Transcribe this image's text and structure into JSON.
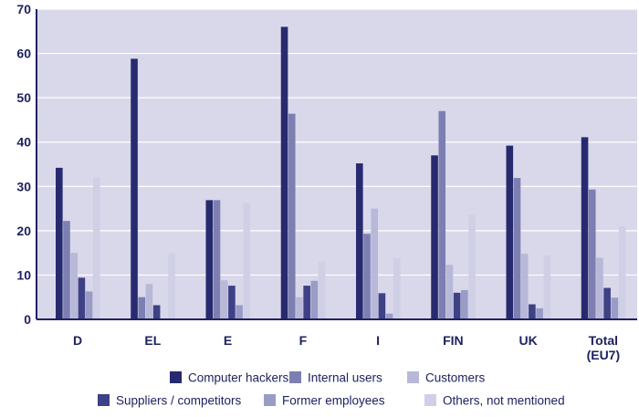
{
  "chart_data": {
    "type": "bar",
    "categories": [
      "D",
      "EL",
      "E",
      "F",
      "I",
      "FIN",
      "UK",
      "Total (EU7)"
    ],
    "category_lines": [
      [
        "D"
      ],
      [
        "EL"
      ],
      [
        "E"
      ],
      [
        "F"
      ],
      [
        "I"
      ],
      [
        "FIN"
      ],
      [
        "UK"
      ],
      [
        "Total",
        "(EU7)"
      ]
    ],
    "series": [
      {
        "name": "Computer hackers",
        "color": "#272a6e",
        "values": [
          34.2,
          58.8,
          26.9,
          66.0,
          35.2,
          37.0,
          39.2,
          41.1
        ]
      },
      {
        "name": "Internal users",
        "color": "#7d7fb2",
        "values": [
          22.2,
          5.0,
          26.9,
          46.4,
          19.3,
          47.0,
          31.9,
          29.3
        ]
      },
      {
        "name": "Customers",
        "color": "#b8b8d8",
        "values": [
          15.0,
          8.0,
          8.8,
          5.0,
          25.0,
          12.3,
          14.8,
          13.9
        ]
      },
      {
        "name": "Suppliers / competitors",
        "color": "#3e4185",
        "values": [
          9.4,
          3.2,
          7.6,
          7.6,
          5.9,
          6.0,
          3.4,
          7.1
        ]
      },
      {
        "name": "Former employees",
        "color": "#9a9cc7",
        "values": [
          6.3,
          0,
          3.2,
          8.7,
          1.3,
          6.6,
          2.5,
          4.9
        ]
      },
      {
        "name": "Others, not mentioned",
        "color": "#cfcfe5",
        "values": [
          32.0,
          14.9,
          26.2,
          13.0,
          13.9,
          23.7,
          14.5,
          21.0
        ]
      }
    ],
    "ylim": [
      0,
      70
    ],
    "yticks": [
      0,
      10,
      20,
      30,
      40,
      50,
      60,
      70
    ],
    "grid": true,
    "legend_position": "bottom",
    "plot_background": "#d9d8ea"
  }
}
